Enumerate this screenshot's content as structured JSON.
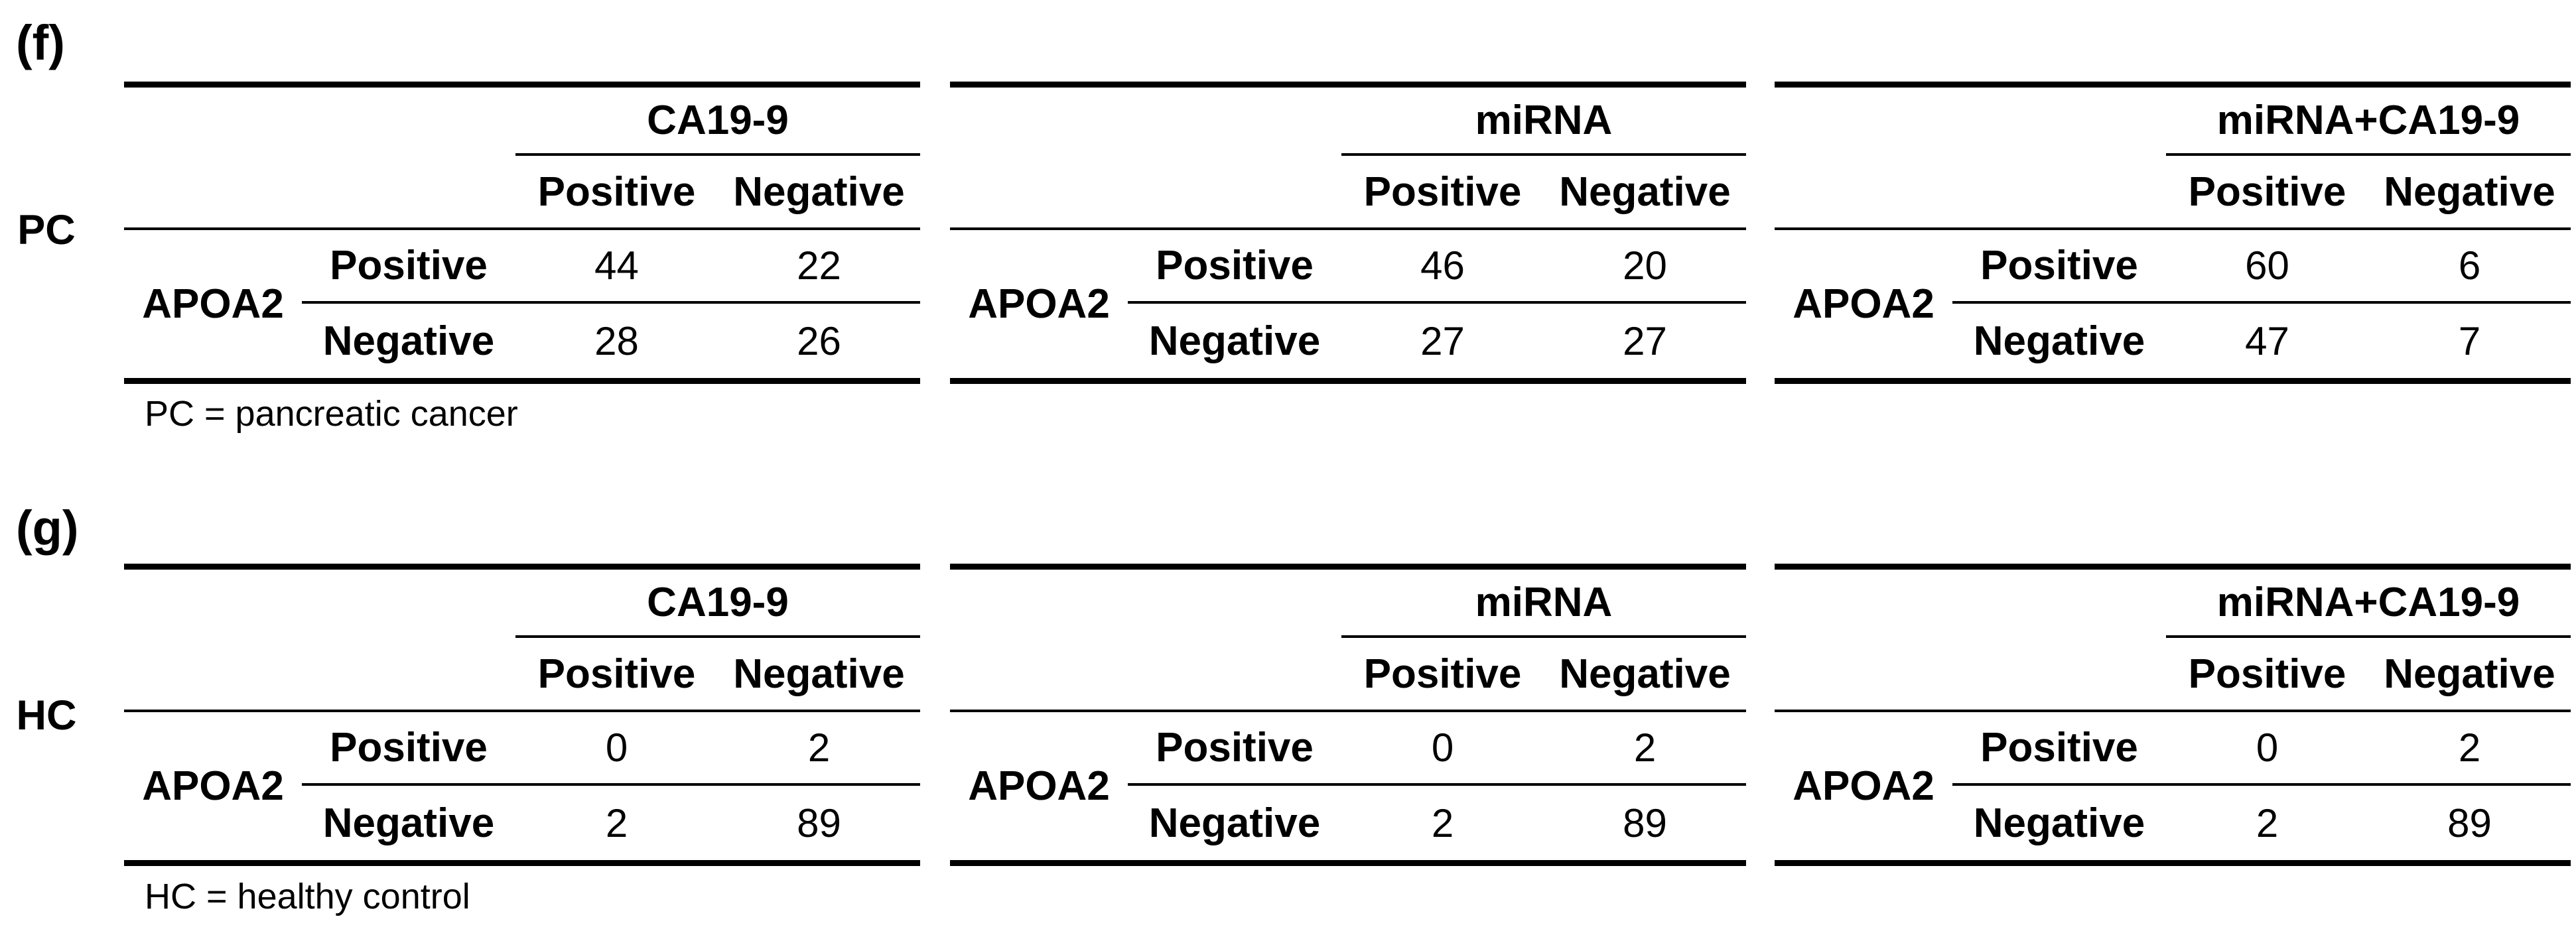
{
  "figure": {
    "type": "confusion-matrix-tables",
    "panels": [
      {
        "label": "(f)",
        "cohort": "PC",
        "footnote": "PC = pancreatic cancer",
        "tables": [
          {
            "group": "CA19-9",
            "cols": [
              "Positive",
              "Negative"
            ],
            "side": "APOA2",
            "rows": [
              {
                "label": "Positive",
                "v": [
                  "44",
                  "22"
                ]
              },
              {
                "label": "Negative",
                "v": [
                  "28",
                  "26"
                ]
              }
            ]
          },
          {
            "group": "miRNA",
            "cols": [
              "Positive",
              "Negative"
            ],
            "side": "APOA2",
            "rows": [
              {
                "label": "Positive",
                "v": [
                  "46",
                  "20"
                ]
              },
              {
                "label": "Negative",
                "v": [
                  "27",
                  "27"
                ]
              }
            ]
          },
          {
            "group": "miRNA+CA19-9",
            "cols": [
              "Positive",
              "Negative"
            ],
            "side": "APOA2",
            "rows": [
              {
                "label": "Positive",
                "v": [
                  "60",
                  "6"
                ]
              },
              {
                "label": "Negative",
                "v": [
                  "47",
                  "7"
                ]
              }
            ]
          }
        ]
      },
      {
        "label": "(g)",
        "cohort": "HC",
        "footnote": "HC = healthy control",
        "tables": [
          {
            "group": "CA19-9",
            "cols": [
              "Positive",
              "Negative"
            ],
            "side": "APOA2",
            "rows": [
              {
                "label": "Positive",
                "v": [
                  "0",
                  "2"
                ]
              },
              {
                "label": "Negative",
                "v": [
                  "2",
                  "89"
                ]
              }
            ]
          },
          {
            "group": "miRNA",
            "cols": [
              "Positive",
              "Negative"
            ],
            "side": "APOA2",
            "rows": [
              {
                "label": "Positive",
                "v": [
                  "0",
                  "2"
                ]
              },
              {
                "label": "Negative",
                "v": [
                  "2",
                  "89"
                ]
              }
            ]
          },
          {
            "group": "miRNA+CA19-9",
            "cols": [
              "Positive",
              "Negative"
            ],
            "side": "APOA2",
            "rows": [
              {
                "label": "Positive",
                "v": [
                  "0",
                  "2"
                ]
              },
              {
                "label": "Negative",
                "v": [
                  "2",
                  "89"
                ]
              }
            ]
          }
        ]
      }
    ],
    "colors": {
      "text": "#000000",
      "rule": "#000000",
      "background": "#ffffff"
    }
  }
}
